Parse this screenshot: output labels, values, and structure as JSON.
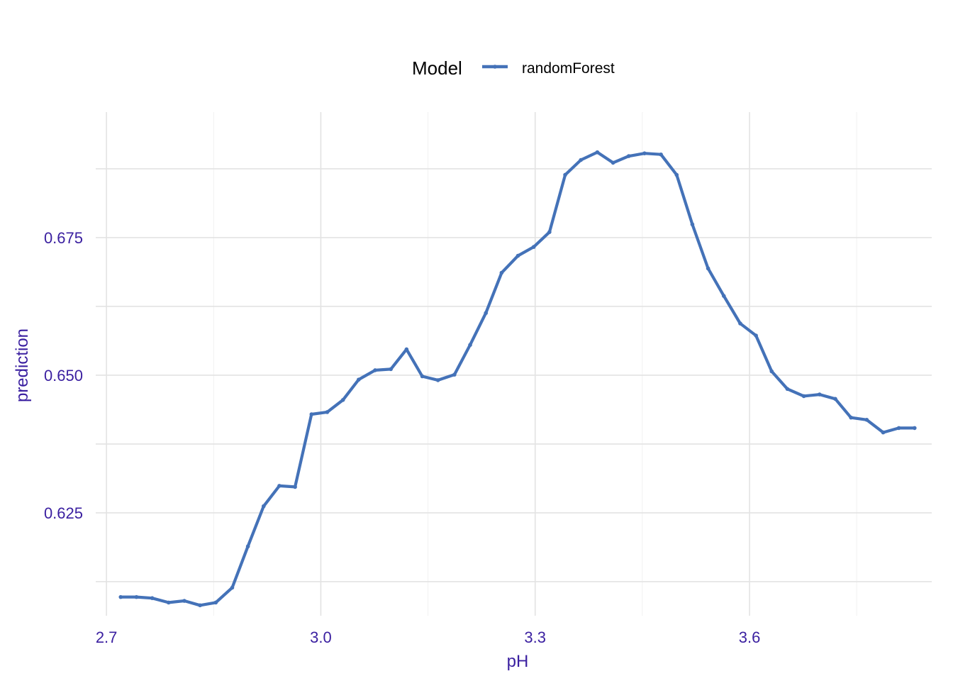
{
  "chart_data": {
    "type": "line",
    "title": "",
    "xlabel": "pH",
    "ylabel": "prediction",
    "xlim": [
      2.685,
      3.855
    ],
    "ylim": [
      0.6063,
      0.6978
    ],
    "x_ticks": [
      2.7,
      3.0,
      3.3,
      3.6
    ],
    "x_tick_labels": [
      "2.7",
      "3.0",
      "3.3",
      "3.6"
    ],
    "x_minor_ticks": [
      2.85,
      3.15,
      3.45,
      3.75
    ],
    "y_ticks": [
      0.625,
      0.65,
      0.675
    ],
    "y_tick_labels": [
      "0.625",
      "0.650",
      "0.675"
    ],
    "y_minor_ticks": [
      0.6125,
      0.6375,
      0.6625,
      0.6875
    ],
    "grid": true,
    "legend": {
      "title": "Model",
      "position": "top"
    },
    "series": [
      {
        "name": "randomForest",
        "color": "#4472b8",
        "x": [
          2.72,
          2.742,
          2.764,
          2.787,
          2.809,
          2.831,
          2.853,
          2.876,
          2.898,
          2.92,
          2.942,
          2.964,
          2.987,
          3.009,
          3.031,
          3.053,
          3.076,
          3.098,
          3.12,
          3.142,
          3.164,
          3.187,
          3.209,
          3.231,
          3.253,
          3.276,
          3.298,
          3.32,
          3.342,
          3.364,
          3.387,
          3.409,
          3.431,
          3.453,
          3.476,
          3.498,
          3.52,
          3.542,
          3.564,
          3.587,
          3.609,
          3.631,
          3.653,
          3.676,
          3.698,
          3.72,
          3.742,
          3.764,
          3.787,
          3.809,
          3.831
        ],
        "y": [
          0.6097,
          0.6097,
          0.6095,
          0.6087,
          0.609,
          0.6082,
          0.6087,
          0.6114,
          0.6189,
          0.6262,
          0.6299,
          0.6297,
          0.6429,
          0.6433,
          0.6455,
          0.6492,
          0.6509,
          0.6511,
          0.6547,
          0.6498,
          0.6491,
          0.6501,
          0.6555,
          0.6613,
          0.6686,
          0.6717,
          0.6733,
          0.676,
          0.6864,
          0.6891,
          0.6905,
          0.6886,
          0.6898,
          0.6903,
          0.6901,
          0.6864,
          0.6774,
          0.6694,
          0.6644,
          0.6594,
          0.6572,
          0.6507,
          0.6475,
          0.6462,
          0.6465,
          0.6457,
          0.6423,
          0.6419,
          0.6396,
          0.6404,
          0.6404
        ]
      }
    ]
  }
}
